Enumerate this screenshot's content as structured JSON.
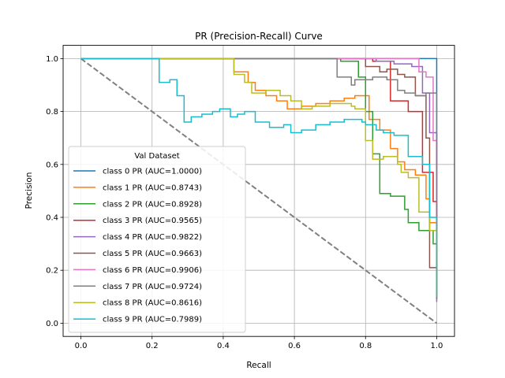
{
  "chart_data": {
    "type": "line",
    "title": "PR (Precision-Recall) Curve",
    "xlabel": "Recall",
    "ylabel": "Precision",
    "xlim": [
      -0.05,
      1.05
    ],
    "ylim": [
      -0.05,
      1.05
    ],
    "x_ticks": [
      "0.0",
      "0.2",
      "0.4",
      "0.6",
      "0.8",
      "1.0"
    ],
    "y_ticks": [
      "0.0",
      "0.2",
      "0.4",
      "0.6",
      "0.8",
      "1.0"
    ],
    "grid": true,
    "legend_title": "Val Dataset",
    "legend_position": "lower-left",
    "baseline": {
      "points": [
        [
          0,
          1
        ],
        [
          1,
          0
        ]
      ],
      "color": "#808080",
      "style": "dashed"
    },
    "series": [
      {
        "name": "class 0 PR (AUC=1.0000)",
        "color": "#1f77b4",
        "points": [
          [
            0,
            1
          ],
          [
            0.99,
            1
          ],
          [
            0.99,
            1
          ],
          [
            1,
            1
          ],
          [
            1,
            0.1
          ]
        ]
      },
      {
        "name": "class 1 PR (AUC=0.8743)",
        "color": "#ff7f0e",
        "points": [
          [
            0,
            1
          ],
          [
            0.43,
            1
          ],
          [
            0.43,
            0.95
          ],
          [
            0.47,
            0.95
          ],
          [
            0.47,
            0.91
          ],
          [
            0.49,
            0.91
          ],
          [
            0.49,
            0.88
          ],
          [
            0.52,
            0.88
          ],
          [
            0.52,
            0.86
          ],
          [
            0.55,
            0.86
          ],
          [
            0.55,
            0.84
          ],
          [
            0.58,
            0.84
          ],
          [
            0.58,
            0.81
          ],
          [
            0.62,
            0.81
          ],
          [
            0.62,
            0.82
          ],
          [
            0.66,
            0.82
          ],
          [
            0.66,
            0.83
          ],
          [
            0.7,
            0.83
          ],
          [
            0.7,
            0.84
          ],
          [
            0.74,
            0.84
          ],
          [
            0.74,
            0.85
          ],
          [
            0.77,
            0.85
          ],
          [
            0.77,
            0.86
          ],
          [
            0.81,
            0.86
          ],
          [
            0.81,
            0.77
          ],
          [
            0.84,
            0.77
          ],
          [
            0.84,
            0.73
          ],
          [
            0.87,
            0.73
          ],
          [
            0.87,
            0.66
          ],
          [
            0.89,
            0.66
          ],
          [
            0.89,
            0.61
          ],
          [
            0.91,
            0.61
          ],
          [
            0.91,
            0.58
          ],
          [
            0.94,
            0.58
          ],
          [
            0.94,
            0.56
          ],
          [
            0.97,
            0.56
          ],
          [
            0.97,
            0.47
          ],
          [
            0.98,
            0.47
          ],
          [
            0.98,
            0.38
          ],
          [
            1,
            0.38
          ],
          [
            1,
            0.09
          ]
        ]
      },
      {
        "name": "class 2 PR (AUC=0.8928)",
        "color": "#2ca02c",
        "points": [
          [
            0,
            1
          ],
          [
            0.73,
            1
          ],
          [
            0.73,
            0.99
          ],
          [
            0.78,
            0.99
          ],
          [
            0.78,
            0.93
          ],
          [
            0.8,
            0.93
          ],
          [
            0.8,
            0.8
          ],
          [
            0.82,
            0.8
          ],
          [
            0.82,
            0.64
          ],
          [
            0.84,
            0.64
          ],
          [
            0.84,
            0.49
          ],
          [
            0.87,
            0.49
          ],
          [
            0.87,
            0.48
          ],
          [
            0.91,
            0.48
          ],
          [
            0.91,
            0.43
          ],
          [
            0.92,
            0.43
          ],
          [
            0.92,
            0.38
          ],
          [
            0.95,
            0.38
          ],
          [
            0.95,
            0.35
          ],
          [
            0.99,
            0.35
          ],
          [
            0.99,
            0.3
          ],
          [
            1,
            0.3
          ],
          [
            1,
            0.1
          ]
        ]
      },
      {
        "name": "class 3 PR (AUC=0.9565)",
        "color": "#d62728",
        "points": [
          [
            0,
            1
          ],
          [
            0.82,
            1
          ],
          [
            0.82,
            0.99
          ],
          [
            0.87,
            0.99
          ],
          [
            0.87,
            0.84
          ],
          [
            0.92,
            0.84
          ],
          [
            0.92,
            0.8
          ],
          [
            0.96,
            0.8
          ],
          [
            0.96,
            0.57
          ],
          [
            0.99,
            0.57
          ],
          [
            0.99,
            0.46
          ],
          [
            1,
            0.46
          ],
          [
            1,
            0.1
          ]
        ]
      },
      {
        "name": "class 4 PR (AUC=0.9822)",
        "color": "#9467bd",
        "points": [
          [
            0,
            1
          ],
          [
            0.83,
            1
          ],
          [
            0.83,
            0.99
          ],
          [
            0.88,
            0.99
          ],
          [
            0.88,
            0.98
          ],
          [
            0.93,
            0.98
          ],
          [
            0.93,
            0.97
          ],
          [
            0.96,
            0.97
          ],
          [
            0.96,
            0.87
          ],
          [
            0.98,
            0.87
          ],
          [
            0.98,
            0.72
          ],
          [
            1,
            0.72
          ],
          [
            1,
            0.08
          ]
        ]
      },
      {
        "name": "class 5 PR (AUC=0.9663)",
        "color": "#8c564b",
        "points": [
          [
            0,
            1
          ],
          [
            0.8,
            1
          ],
          [
            0.8,
            0.97
          ],
          [
            0.84,
            0.97
          ],
          [
            0.84,
            0.95
          ],
          [
            0.86,
            0.95
          ],
          [
            0.86,
            0.96
          ],
          [
            0.89,
            0.96
          ],
          [
            0.89,
            0.94
          ],
          [
            0.91,
            0.94
          ],
          [
            0.91,
            0.93
          ],
          [
            0.94,
            0.93
          ],
          [
            0.94,
            0.86
          ],
          [
            0.97,
            0.86
          ],
          [
            0.97,
            0.7
          ],
          [
            0.98,
            0.7
          ],
          [
            0.98,
            0.21
          ],
          [
            1,
            0.21
          ],
          [
            1,
            0.1
          ]
        ]
      },
      {
        "name": "class 6 PR (AUC=0.9906)",
        "color": "#e377c2",
        "points": [
          [
            0,
            1
          ],
          [
            0.95,
            1
          ],
          [
            0.95,
            0.95
          ],
          [
            0.97,
            0.95
          ],
          [
            0.97,
            0.93
          ],
          [
            0.99,
            0.93
          ],
          [
            0.99,
            0.69
          ],
          [
            1,
            0.69
          ],
          [
            1,
            0.1
          ]
        ]
      },
      {
        "name": "class 7 PR (AUC=0.9724)",
        "color": "#7f7f7f",
        "points": [
          [
            0,
            1
          ],
          [
            0.72,
            1
          ],
          [
            0.72,
            0.93
          ],
          [
            0.76,
            0.93
          ],
          [
            0.76,
            0.9
          ],
          [
            0.77,
            0.9
          ],
          [
            0.77,
            0.92
          ],
          [
            0.82,
            0.92
          ],
          [
            0.82,
            0.93
          ],
          [
            0.86,
            0.93
          ],
          [
            0.86,
            0.92
          ],
          [
            0.89,
            0.92
          ],
          [
            0.89,
            0.88
          ],
          [
            0.91,
            0.88
          ],
          [
            0.91,
            0.87
          ],
          [
            0.94,
            0.87
          ],
          [
            0.94,
            0.86
          ],
          [
            0.97,
            0.86
          ],
          [
            0.97,
            0.87
          ],
          [
            1,
            0.87
          ],
          [
            1,
            0.09
          ]
        ]
      },
      {
        "name": "class 8 PR (AUC=0.8616)",
        "color": "#bcbd22",
        "points": [
          [
            0,
            1
          ],
          [
            0.43,
            1
          ],
          [
            0.43,
            0.94
          ],
          [
            0.46,
            0.94
          ],
          [
            0.46,
            0.91
          ],
          [
            0.48,
            0.91
          ],
          [
            0.48,
            0.87
          ],
          [
            0.52,
            0.87
          ],
          [
            0.52,
            0.88
          ],
          [
            0.56,
            0.88
          ],
          [
            0.56,
            0.86
          ],
          [
            0.59,
            0.86
          ],
          [
            0.59,
            0.84
          ],
          [
            0.62,
            0.84
          ],
          [
            0.62,
            0.81
          ],
          [
            0.65,
            0.81
          ],
          [
            0.65,
            0.82
          ],
          [
            0.7,
            0.82
          ],
          [
            0.7,
            0.83
          ],
          [
            0.76,
            0.83
          ],
          [
            0.76,
            0.82
          ],
          [
            0.77,
            0.82
          ],
          [
            0.77,
            0.81
          ],
          [
            0.8,
            0.81
          ],
          [
            0.8,
            0.69
          ],
          [
            0.82,
            0.69
          ],
          [
            0.82,
            0.62
          ],
          [
            0.85,
            0.62
          ],
          [
            0.85,
            0.63
          ],
          [
            0.89,
            0.63
          ],
          [
            0.89,
            0.6
          ],
          [
            0.9,
            0.6
          ],
          [
            0.9,
            0.57
          ],
          [
            0.92,
            0.57
          ],
          [
            0.92,
            0.55
          ],
          [
            0.95,
            0.55
          ],
          [
            0.95,
            0.42
          ],
          [
            0.98,
            0.42
          ],
          [
            0.98,
            0.35
          ],
          [
            1,
            0.35
          ],
          [
            1,
            0.1
          ]
        ]
      },
      {
        "name": "class 9 PR (AUC=0.7989)",
        "color": "#17becf",
        "points": [
          [
            0,
            1
          ],
          [
            0.22,
            1
          ],
          [
            0.22,
            0.91
          ],
          [
            0.25,
            0.91
          ],
          [
            0.25,
            0.92
          ],
          [
            0.27,
            0.92
          ],
          [
            0.27,
            0.86
          ],
          [
            0.29,
            0.86
          ],
          [
            0.29,
            0.76
          ],
          [
            0.31,
            0.76
          ],
          [
            0.31,
            0.78
          ],
          [
            0.34,
            0.78
          ],
          [
            0.34,
            0.79
          ],
          [
            0.37,
            0.79
          ],
          [
            0.37,
            0.8
          ],
          [
            0.39,
            0.8
          ],
          [
            0.39,
            0.81
          ],
          [
            0.42,
            0.81
          ],
          [
            0.42,
            0.78
          ],
          [
            0.44,
            0.78
          ],
          [
            0.44,
            0.79
          ],
          [
            0.46,
            0.79
          ],
          [
            0.46,
            0.8
          ],
          [
            0.49,
            0.8
          ],
          [
            0.49,
            0.76
          ],
          [
            0.53,
            0.76
          ],
          [
            0.53,
            0.74
          ],
          [
            0.57,
            0.74
          ],
          [
            0.57,
            0.75
          ],
          [
            0.59,
            0.75
          ],
          [
            0.59,
            0.72
          ],
          [
            0.62,
            0.72
          ],
          [
            0.62,
            0.73
          ],
          [
            0.66,
            0.73
          ],
          [
            0.66,
            0.75
          ],
          [
            0.7,
            0.75
          ],
          [
            0.7,
            0.76
          ],
          [
            0.74,
            0.76
          ],
          [
            0.74,
            0.77
          ],
          [
            0.79,
            0.77
          ],
          [
            0.79,
            0.76
          ],
          [
            0.8,
            0.76
          ],
          [
            0.8,
            0.75
          ],
          [
            0.83,
            0.75
          ],
          [
            0.83,
            0.73
          ],
          [
            0.85,
            0.73
          ],
          [
            0.85,
            0.72
          ],
          [
            0.88,
            0.72
          ],
          [
            0.88,
            0.71
          ],
          [
            0.92,
            0.71
          ],
          [
            0.92,
            0.63
          ],
          [
            0.96,
            0.63
          ],
          [
            0.96,
            0.6
          ],
          [
            0.98,
            0.6
          ],
          [
            0.98,
            0.4
          ],
          [
            1,
            0.4
          ],
          [
            1,
            0.1
          ]
        ]
      }
    ]
  }
}
